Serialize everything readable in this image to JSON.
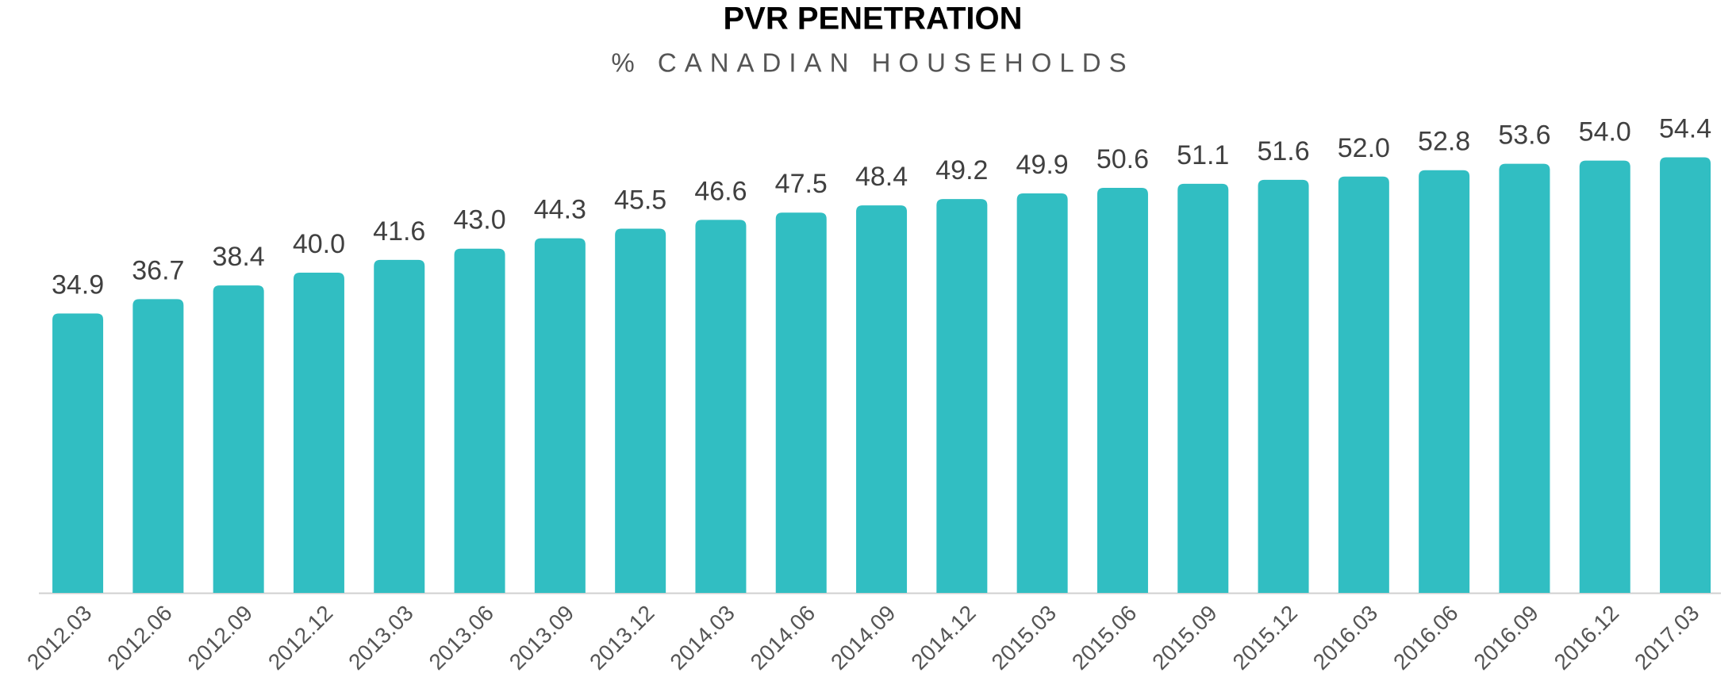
{
  "chart_data": {
    "type": "bar",
    "title": "PVR PENETRATION",
    "subtitle": "% CANADIAN HOUSEHOLDS",
    "categories": [
      "2012.03",
      "2012.06",
      "2012.09",
      "2012.12",
      "2013.03",
      "2013.06",
      "2013.09",
      "2013.12",
      "2014.03",
      "2014.06",
      "2014.09",
      "2014.12",
      "2015.03",
      "2015.06",
      "2015.09",
      "2015.12",
      "2016.03",
      "2016.06",
      "2016.09",
      "2016.12",
      "2017.03"
    ],
    "values": [
      34.9,
      36.7,
      38.4,
      40.0,
      41.6,
      43.0,
      44.3,
      45.5,
      46.6,
      47.5,
      48.4,
      49.2,
      49.9,
      50.6,
      51.1,
      51.6,
      52.0,
      52.8,
      53.6,
      54.0,
      54.4
    ],
    "value_labels": [
      "34.9",
      "36.7",
      "38.4",
      "40.0",
      "41.6",
      "43.0",
      "44.3",
      "45.5",
      "46.6",
      "47.5",
      "48.4",
      "49.2",
      "49.9",
      "50.6",
      "51.1",
      "51.6",
      "52.0",
      "52.8",
      "53.6",
      "54.0",
      "54.4"
    ],
    "color": "#31bec2",
    "ylim": [
      0,
      70
    ]
  }
}
